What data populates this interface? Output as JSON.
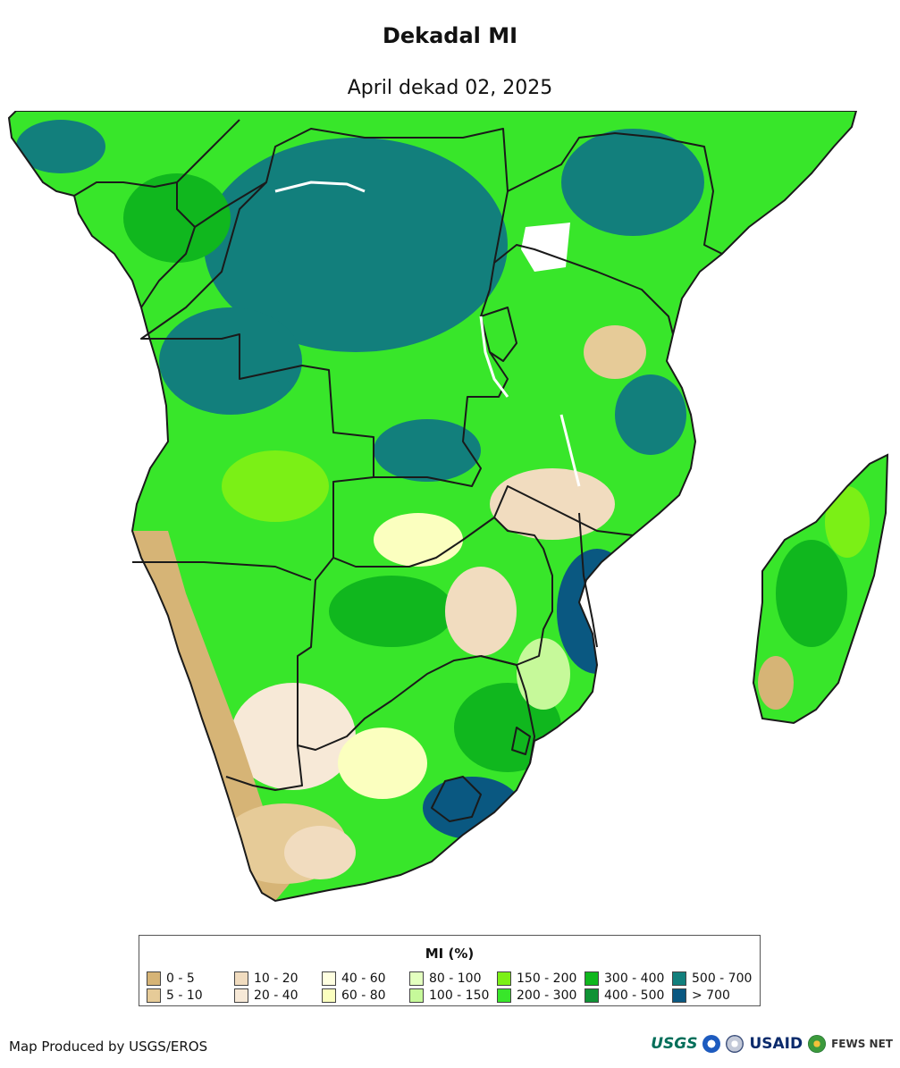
{
  "header": {
    "title": "Dekadal MI",
    "subtitle": "April dekad 02, 2025"
  },
  "map": {
    "region": "Southern Africa",
    "variable": "MI (%)"
  },
  "legend": {
    "title": "MI (%)",
    "items": [
      {
        "label": "0 - 5",
        "color": "#d6b476"
      },
      {
        "label": "5 - 10",
        "color": "#e6cb98"
      },
      {
        "label": "10 - 20",
        "color": "#f1dcbf"
      },
      {
        "label": "20 - 40",
        "color": "#f7e9d7"
      },
      {
        "label": "40 - 60",
        "color": "#ffffe0"
      },
      {
        "label": "60 - 80",
        "color": "#fbffbf"
      },
      {
        "label": "80 - 100",
        "color": "#e3ffbf"
      },
      {
        "label": "100 - 150",
        "color": "#c6f99a"
      },
      {
        "label": "150 - 200",
        "color": "#7bf016"
      },
      {
        "label": "200 - 300",
        "color": "#38e62a"
      },
      {
        "label": "300 - 400",
        "color": "#10b71e"
      },
      {
        "label": "400 - 500",
        "color": "#0f9234"
      },
      {
        "label": "500 - 700",
        "color": "#127f7c"
      },
      {
        "label": "> 700",
        "color": "#0a5881"
      }
    ]
  },
  "footer": {
    "credit": "Map Produced by USGS/EROS",
    "logos": {
      "usgs": "USGS",
      "usaid": "USAID",
      "fews": "FEWS NET",
      "noaa_icon": "noaa-logo-icon",
      "usaid_seal_icon": "usaid-seal-icon",
      "fews_icon": "fews-globe-icon"
    }
  }
}
